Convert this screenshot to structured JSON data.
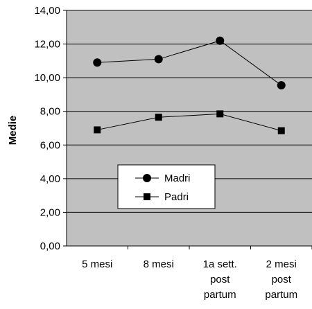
{
  "chart_data": {
    "type": "line",
    "title": "",
    "xlabel": "",
    "ylabel": "Medie",
    "ylim": [
      0,
      14
    ],
    "ytick_step": 2,
    "ytick_labels": [
      "0,00",
      "2,00",
      "4,00",
      "6,00",
      "8,00",
      "10,00",
      "12,00",
      "14,00"
    ],
    "grid": true,
    "plot_background": "#c0c0c0",
    "categories": [
      [
        "5 mesi"
      ],
      [
        "8 mesi"
      ],
      [
        "1a sett.",
        "post",
        "partum"
      ],
      [
        "2 mesi",
        "post",
        "partum"
      ]
    ],
    "series": [
      {
        "name": "Madri",
        "marker": "circle",
        "values": [
          10.9,
          11.1,
          12.2,
          9.55
        ]
      },
      {
        "name": "Padri",
        "marker": "square",
        "values": [
          6.9,
          7.65,
          7.85,
          6.85
        ]
      }
    ],
    "legend": {
      "placement": "lower-left inside plot"
    }
  }
}
